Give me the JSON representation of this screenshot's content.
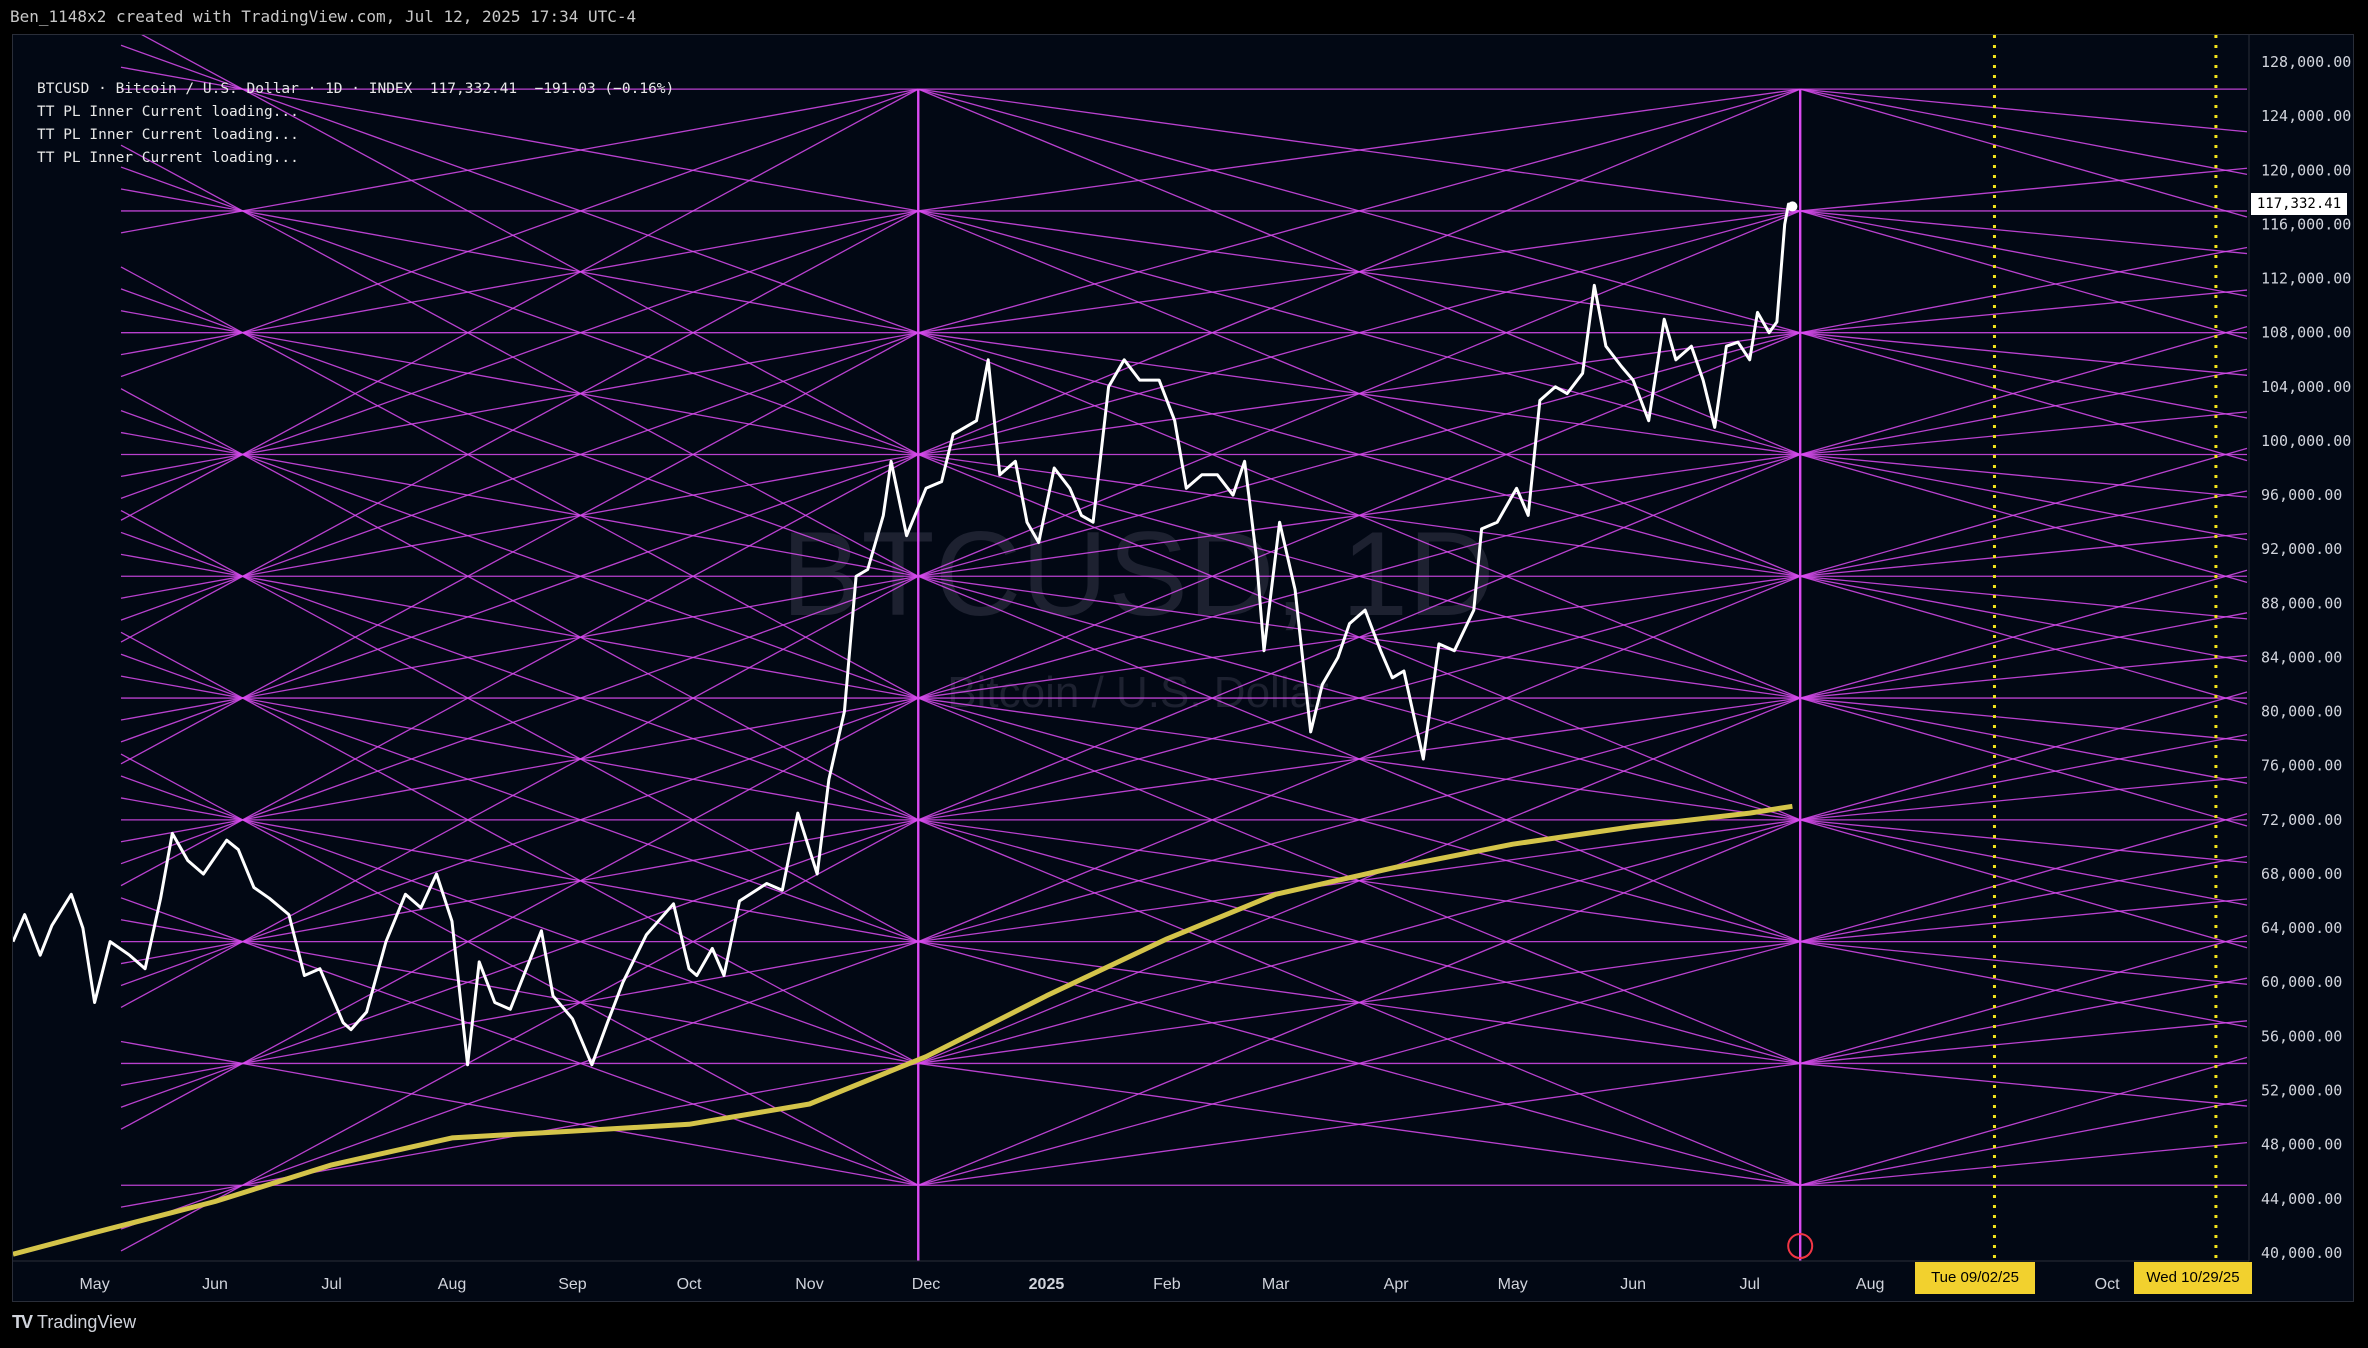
{
  "header": {
    "caption": "Ben_1148x2 created with TradingView.com, Jul 12, 2025 17:34 UTC-4"
  },
  "legend": {
    "title": "BTCUSD · Bitcoin / U.S. Dollar · 1D · INDEX  117,332.41  −191.03 (−0.16%)",
    "indicators": [
      "TT PL Inner Current loading...",
      "TT PL Inner Current loading...",
      "TT PL Inner Current loading..."
    ]
  },
  "watermark": {
    "symbol": "BTCUSD, 1D",
    "name": "Bitcoin / U.S. Dollar"
  },
  "price_axis_labels": [
    "128,000.00",
    "124,000.00",
    "120,000.00",
    "116,000.00",
    "112,000.00",
    "108,000.00",
    "104,000.00",
    "100,000.00",
    "96,000.00",
    "92,000.00",
    "88,000.00",
    "84,000.00",
    "80,000.00",
    "76,000.00",
    "72,000.00",
    "68,000.00",
    "64,000.00",
    "60,000.00",
    "56,000.00",
    "52,000.00",
    "48,000.00",
    "44,000.00",
    "40,000.00"
  ],
  "time_axis_labels": [
    {
      "label": "May",
      "date": "2024-05-01"
    },
    {
      "label": "Jun",
      "date": "2024-06-01"
    },
    {
      "label": "Jul",
      "date": "2024-07-01"
    },
    {
      "label": "Aug",
      "date": "2024-08-01"
    },
    {
      "label": "Sep",
      "date": "2024-09-01"
    },
    {
      "label": "Oct",
      "date": "2024-10-01"
    },
    {
      "label": "Nov",
      "date": "2024-11-01"
    },
    {
      "label": "Dec",
      "date": "2024-12-01"
    },
    {
      "label": "2025",
      "date": "2025-01-01"
    },
    {
      "label": "Feb",
      "date": "2025-02-01"
    },
    {
      "label": "Mar",
      "date": "2025-03-01"
    },
    {
      "label": "Apr",
      "date": "2025-04-01"
    },
    {
      "label": "May",
      "date": "2025-05-01"
    },
    {
      "label": "Jun",
      "date": "2025-06-01"
    },
    {
      "label": "Jul",
      "date": "2025-07-01"
    },
    {
      "label": "Aug",
      "date": "2025-08-01"
    },
    {
      "label": "Oct",
      "date": "2025-10-01"
    }
  ],
  "last_price_label": "117,332.41",
  "date_markers": [
    {
      "label": "Tue 09/02/25",
      "date": "2025-09-02"
    },
    {
      "label": "Wed 10/29/25",
      "date": "2025-10-29"
    }
  ],
  "footer": {
    "logo_mark": "TV",
    "brand": "TradingView"
  },
  "colors": {
    "background": "#020814",
    "price": "#ffffff",
    "grid_lines": "#d94bf0",
    "moving_average": "#d4c44a",
    "markers": "#f2e21c"
  },
  "chart_data": {
    "type": "line",
    "x_range": [
      "2024-04-10",
      "2025-11-06"
    ],
    "y_range": [
      39400,
      130000
    ],
    "series": [
      {
        "values": [
          [
            "2024-04-10",
            63000
          ],
          [
            "2024-04-13",
            65000
          ],
          [
            "2024-04-17",
            62000
          ],
          [
            "2024-04-20",
            64200
          ],
          [
            "2024-04-25",
            66500
          ],
          [
            "2024-04-28",
            64000
          ],
          [
            "2024-05-01",
            58500
          ],
          [
            "2024-05-05",
            63000
          ],
          [
            "2024-05-10",
            62000
          ],
          [
            "2024-05-14",
            61000
          ],
          [
            "2024-05-18",
            66200
          ],
          [
            "2024-05-21",
            71000
          ],
          [
            "2024-05-25",
            69000
          ],
          [
            "2024-05-29",
            68000
          ],
          [
            "2024-06-04",
            70500
          ],
          [
            "2024-06-07",
            69800
          ],
          [
            "2024-06-11",
            67000
          ],
          [
            "2024-06-15",
            66200
          ],
          [
            "2024-06-20",
            65000
          ],
          [
            "2024-06-24",
            60500
          ],
          [
            "2024-06-28",
            61000
          ],
          [
            "2024-07-04",
            57000
          ],
          [
            "2024-07-06",
            56500
          ],
          [
            "2024-07-10",
            57800
          ],
          [
            "2024-07-15",
            63000
          ],
          [
            "2024-07-20",
            66500
          ],
          [
            "2024-07-24",
            65500
          ],
          [
            "2024-07-28",
            68000
          ],
          [
            "2024-08-01",
            64500
          ],
          [
            "2024-08-05",
            53900
          ],
          [
            "2024-08-08",
            61500
          ],
          [
            "2024-08-12",
            58500
          ],
          [
            "2024-08-16",
            58000
          ],
          [
            "2024-08-24",
            63800
          ],
          [
            "2024-08-27",
            59000
          ],
          [
            "2024-09-01",
            57300
          ],
          [
            "2024-09-06",
            53900
          ],
          [
            "2024-09-10",
            57000
          ],
          [
            "2024-09-14",
            60000
          ],
          [
            "2024-09-20",
            63500
          ],
          [
            "2024-09-27",
            65800
          ],
          [
            "2024-10-01",
            61000
          ],
          [
            "2024-10-03",
            60500
          ],
          [
            "2024-10-07",
            62500
          ],
          [
            "2024-10-10",
            60500
          ],
          [
            "2024-10-14",
            66000
          ],
          [
            "2024-10-21",
            67300
          ],
          [
            "2024-10-25",
            66800
          ],
          [
            "2024-10-29",
            72500
          ],
          [
            "2024-11-03",
            68000
          ],
          [
            "2024-11-06",
            75000
          ],
          [
            "2024-11-10",
            80000
          ],
          [
            "2024-11-13",
            90000
          ],
          [
            "2024-11-16",
            90500
          ],
          [
            "2024-11-20",
            94500
          ],
          [
            "2024-11-22",
            98500
          ],
          [
            "2024-11-26",
            93000
          ],
          [
            "2024-12-01",
            96500
          ],
          [
            "2024-12-05",
            97000
          ],
          [
            "2024-12-08",
            100500
          ],
          [
            "2024-12-11",
            101000
          ],
          [
            "2024-12-14",
            101500
          ],
          [
            "2024-12-17",
            106000
          ],
          [
            "2024-12-20",
            97500
          ],
          [
            "2024-12-24",
            98500
          ],
          [
            "2024-12-27",
            94000
          ],
          [
            "2024-12-30",
            92500
          ],
          [
            "2025-01-03",
            98000
          ],
          [
            "2025-01-07",
            96500
          ],
          [
            "2025-01-10",
            94500
          ],
          [
            "2025-01-13",
            94000
          ],
          [
            "2025-01-17",
            104000
          ],
          [
            "2025-01-21",
            106000
          ],
          [
            "2025-01-25",
            104500
          ],
          [
            "2025-01-30",
            104500
          ],
          [
            "2025-02-03",
            101500
          ],
          [
            "2025-02-06",
            96500
          ],
          [
            "2025-02-10",
            97500
          ],
          [
            "2025-02-14",
            97500
          ],
          [
            "2025-02-18",
            96000
          ],
          [
            "2025-02-21",
            98500
          ],
          [
            "2025-02-24",
            91500
          ],
          [
            "2025-02-26",
            84500
          ],
          [
            "2025-03-02",
            94000
          ],
          [
            "2025-03-06",
            89000
          ],
          [
            "2025-03-10",
            78500
          ],
          [
            "2025-03-13",
            82000
          ],
          [
            "2025-03-17",
            84000
          ],
          [
            "2025-03-20",
            86500
          ],
          [
            "2025-03-24",
            87500
          ],
          [
            "2025-03-28",
            84500
          ],
          [
            "2025-03-31",
            82500
          ],
          [
            "2025-04-03",
            83000
          ],
          [
            "2025-04-08",
            76500
          ],
          [
            "2025-04-12",
            85000
          ],
          [
            "2025-04-16",
            84500
          ],
          [
            "2025-04-21",
            87500
          ],
          [
            "2025-04-23",
            93500
          ],
          [
            "2025-04-27",
            94000
          ],
          [
            "2025-05-02",
            96500
          ],
          [
            "2025-05-05",
            94500
          ],
          [
            "2025-05-08",
            103000
          ],
          [
            "2025-05-12",
            104000
          ],
          [
            "2025-05-15",
            103500
          ],
          [
            "2025-05-19",
            105000
          ],
          [
            "2025-05-22",
            111500
          ],
          [
            "2025-05-25",
            107000
          ],
          [
            "2025-05-29",
            105500
          ],
          [
            "2025-06-01",
            104500
          ],
          [
            "2025-06-05",
            101500
          ],
          [
            "2025-06-09",
            109000
          ],
          [
            "2025-06-12",
            106000
          ],
          [
            "2025-06-16",
            107000
          ],
          [
            "2025-06-19",
            104500
          ],
          [
            "2025-06-22",
            101000
          ],
          [
            "2025-06-25",
            107000
          ],
          [
            "2025-06-28",
            107300
          ],
          [
            "2025-07-01",
            106000
          ],
          [
            "2025-07-03",
            109500
          ],
          [
            "2025-07-06",
            108000
          ],
          [
            "2025-07-08",
            108800
          ],
          [
            "2025-07-10",
            116000
          ],
          [
            "2025-07-11",
            117500
          ],
          [
            "2025-07-12",
            117332
          ]
        ]
      },
      {
        "values": [
          [
            "2024-04-10",
            39900
          ],
          [
            "2024-05-01",
            41500
          ],
          [
            "2024-06-01",
            43800
          ],
          [
            "2024-07-01",
            46500
          ],
          [
            "2024-08-01",
            48500
          ],
          [
            "2024-09-01",
            49000
          ],
          [
            "2024-10-01",
            49500
          ],
          [
            "2024-11-01",
            51000
          ],
          [
            "2024-12-01",
            54500
          ],
          [
            "2025-01-01",
            59000
          ],
          [
            "2025-02-01",
            63200
          ],
          [
            "2025-03-01",
            66500
          ],
          [
            "2025-04-01",
            68500
          ],
          [
            "2025-05-01",
            70200
          ],
          [
            "2025-06-01",
            71500
          ],
          [
            "2025-07-01",
            72500
          ],
          [
            "2025-07-12",
            73000
          ]
        ]
      }
    ]
  }
}
